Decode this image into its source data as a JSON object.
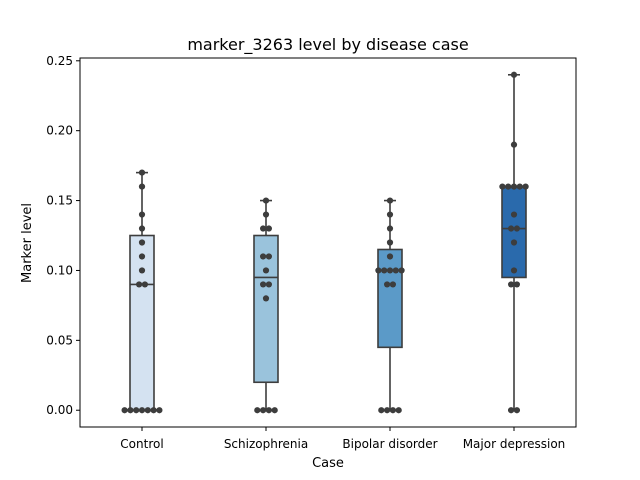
{
  "chart_data": {
    "type": "box",
    "title": "marker_3263 level by disease case",
    "xlabel": "Case",
    "ylabel": "Marker level",
    "ylim": [
      -0.012,
      0.252
    ],
    "yticks": [
      0.0,
      0.05,
      0.1,
      0.15,
      0.2,
      0.25
    ],
    "ytick_labels": [
      "0.00",
      "0.05",
      "0.10",
      "0.15",
      "0.20",
      "0.25"
    ],
    "categories": [
      "Control",
      "Schizophrenia",
      "Bipolar disorder",
      "Major depression"
    ],
    "box_colors": [
      "#d4e2f1",
      "#9ac3dc",
      "#5b9ac8",
      "#2a6aac"
    ],
    "line_color": "#3d3d3d",
    "point_color": "#3d3d3d",
    "boxes": [
      {
        "whisker_low": 0.0,
        "q1": 0.0,
        "median": 0.09,
        "q3": 0.125,
        "whisker_high": 0.17
      },
      {
        "whisker_low": 0.0,
        "q1": 0.02,
        "median": 0.095,
        "q3": 0.125,
        "whisker_high": 0.15
      },
      {
        "whisker_low": 0.0,
        "q1": 0.045,
        "median": 0.1,
        "q3": 0.115,
        "whisker_high": 0.15
      },
      {
        "whisker_low": 0.0,
        "q1": 0.095,
        "median": 0.13,
        "q3": 0.16,
        "whisker_high": 0.24
      }
    ],
    "points": [
      [
        0,
        0,
        0,
        0,
        0,
        0,
        0,
        0.09,
        0.09,
        0.1,
        0.11,
        0.12,
        0.13,
        0.14,
        0.16,
        0.17
      ],
      [
        0,
        0,
        0,
        0,
        0.08,
        0.09,
        0.09,
        0.1,
        0.11,
        0.11,
        0.13,
        0.13,
        0.14,
        0.15
      ],
      [
        0,
        0,
        0,
        0,
        0.09,
        0.09,
        0.1,
        0.1,
        0.1,
        0.1,
        0.1,
        0.11,
        0.12,
        0.13,
        0.14,
        0.15
      ],
      [
        0,
        0,
        0.09,
        0.09,
        0.1,
        0.12,
        0.13,
        0.13,
        0.14,
        0.16,
        0.16,
        0.16,
        0.16,
        0.16,
        0.19,
        0.24
      ]
    ]
  }
}
